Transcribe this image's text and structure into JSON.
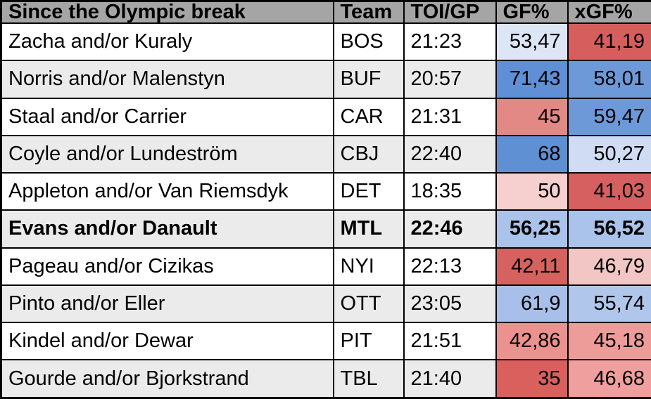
{
  "chart_data": {
    "type": "table",
    "title": "Since the Olympic break",
    "columns": [
      "Since the Olympic break",
      "Team",
      "TOI/GP",
      "GF%",
      "xGF%"
    ],
    "header_bg": "#a5a5a5",
    "border_color": "#000000",
    "row_bg": "#ffffff",
    "row_alt_bg": "#ebebeb",
    "rows": [
      {
        "name": "Zacha and/or Kuraly",
        "team": "BOS",
        "toi_gp": "21:23",
        "gf_pct": "53,47",
        "gf_bg": "#dce6f5",
        "xgf_pct": "41,19",
        "xgf_bg": "#d65f5e",
        "highlight": false
      },
      {
        "name": "Norris and/or Malenstyn",
        "team": "BUF",
        "toi_gp": "20:57",
        "gf_pct": "71,43",
        "gf_bg": "#5f8fd5",
        "xgf_pct": "58,01",
        "xgf_bg": "#6d99d8",
        "highlight": false
      },
      {
        "name": "Staal and/or Carrier",
        "team": "CAR",
        "toi_gp": "21:31",
        "gf_pct": "45",
        "gf_bg": "#e28885",
        "xgf_pct": "59,47",
        "xgf_bg": "#6d99d8",
        "highlight": false
      },
      {
        "name": "Coyle and/or Lundeström",
        "team": "CBJ",
        "toi_gp": "22:40",
        "gf_pct": "68",
        "gf_bg": "#6090d4",
        "xgf_pct": "50,27",
        "xgf_bg": "#cfdcf3",
        "highlight": false
      },
      {
        "name": "Appleton and/or Van Riemsdyk",
        "team": "DET",
        "toi_gp": "18:35",
        "gf_pct": "50",
        "gf_bg": "#f5d0ce",
        "xgf_pct": "41,03",
        "xgf_bg": "#d6605f",
        "highlight": false
      },
      {
        "name": "Evans and/or Danault",
        "team": "MTL",
        "toi_gp": "22:46",
        "gf_pct": "56,25",
        "gf_bg": "#aac3ea",
        "xgf_pct": "56,52",
        "xgf_bg": "#aac3ea",
        "highlight": true
      },
      {
        "name": "Pageau and/or Cizikas",
        "team": "NYI",
        "toi_gp": "22:13",
        "gf_pct": "42,11",
        "gf_bg": "#d66260",
        "xgf_pct": "46,79",
        "xgf_bg": "#f2c6c4",
        "highlight": false
      },
      {
        "name": "Pinto and/or Eller",
        "team": "OTT",
        "toi_gp": "23:05",
        "gf_pct": "61,9",
        "gf_bg": "#a8c0e9",
        "xgf_pct": "55,74",
        "xgf_bg": "#b0c7eb",
        "highlight": false
      },
      {
        "name": "Kindel and/or Dewar",
        "team": "PIT",
        "toi_gp": "21:51",
        "gf_pct": "42,86",
        "gf_bg": "#eb918e",
        "xgf_pct": "45,18",
        "xgf_bg": "#ee9c9a",
        "highlight": false
      },
      {
        "name": "Gourde and/or Bjorkstrand",
        "team": "TBL",
        "toi_gp": "21:40",
        "gf_pct": "35",
        "gf_bg": "#da605e",
        "xgf_pct": "46,68",
        "xgf_bg": "#ef9f9d",
        "highlight": false
      }
    ]
  }
}
